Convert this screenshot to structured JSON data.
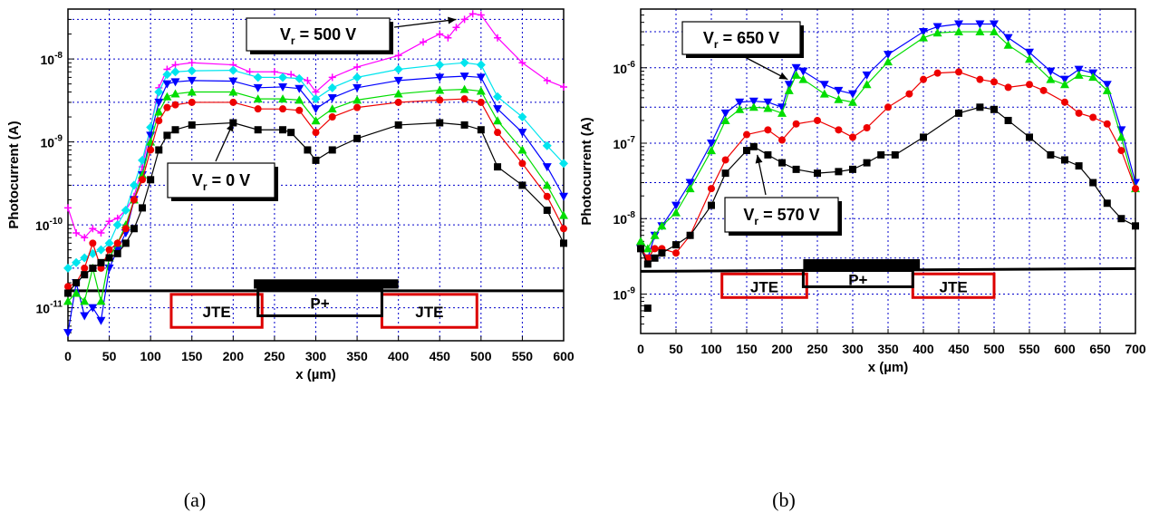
{
  "chart_data": [
    {
      "type": "line",
      "caption": "(a)",
      "xlabel": "x (µm)",
      "ylabel": "Photocurrent (A)",
      "x_scale": "linear",
      "y_scale": "log",
      "xlim": [
        0,
        600
      ],
      "ylim": [
        4e-12,
        4e-08
      ],
      "x_ticks": [
        0,
        50,
        100,
        150,
        200,
        250,
        300,
        350,
        400,
        450,
        500,
        550,
        600
      ],
      "x_tick_labels": [
        "0",
        "50",
        "100",
        "150",
        "200",
        "250",
        "300",
        "350",
        "400",
        "450",
        "500",
        "550",
        "600"
      ],
      "y_ticks": [
        1e-11,
        1e-10,
        1e-09,
        1e-08
      ],
      "y_tick_labels": [
        {
          "base": "10",
          "exp": "-11"
        },
        {
          "base": "10",
          "exp": "-10"
        },
        {
          "base": "10",
          "exp": "-9"
        },
        {
          "base": "10",
          "exp": "-8"
        }
      ],
      "grid": true,
      "annotations": [
        {
          "text_main": "V",
          "text_sub": "r",
          "text_rest": " = 500 V",
          "arrow_target": [
            470,
            3e-08
          ]
        },
        {
          "text_main": "V",
          "text_sub": "r",
          "text_rest": " = 0 V",
          "arrow_target": [
            200,
            1.7e-09
          ]
        }
      ],
      "regions": {
        "jte_left_label": "JTE",
        "p_plus_label": "P+",
        "jte_right_label": "JTE",
        "jte_left_range": [
          125,
          235
        ],
        "p_plus_range": [
          230,
          380
        ],
        "jte_right_range": [
          380,
          495
        ],
        "metal_range": [
          225,
          400
        ]
      },
      "series": [
        {
          "color": "#ff00ff",
          "marker": "plus",
          "x": [
            0,
            10,
            20,
            30,
            40,
            50,
            60,
            70,
            80,
            90,
            100,
            110,
            120,
            130,
            150,
            200,
            220,
            250,
            270,
            290,
            300,
            320,
            350,
            400,
            430,
            450,
            460,
            470,
            480,
            490,
            500,
            520,
            550,
            580,
            600
          ],
          "y": [
            1.6e-10,
            8e-11,
            7e-11,
            9e-11,
            8e-11,
            1.1e-10,
            1.2e-10,
            1.5e-10,
            2.2e-10,
            5e-10,
            1.5e-09,
            4.5e-09,
            7.5e-09,
            8.5e-09,
            9e-09,
            8.5e-09,
            7e-09,
            7e-09,
            6.5e-09,
            5.5e-09,
            4e-09,
            6e-09,
            8e-09,
            1.1e-08,
            1.6e-08,
            2e-08,
            1.8e-08,
            2.4e-08,
            3e-08,
            3.5e-08,
            3.4e-08,
            1.8e-08,
            9e-09,
            5.5e-09,
            4.6e-09
          ]
        },
        {
          "color": "#00e5ee",
          "marker": "diamond",
          "x": [
            0,
            10,
            20,
            30,
            40,
            50,
            60,
            70,
            80,
            90,
            100,
            110,
            120,
            130,
            150,
            200,
            230,
            260,
            280,
            300,
            320,
            350,
            400,
            450,
            480,
            500,
            520,
            550,
            580,
            600
          ],
          "y": [
            3e-11,
            3.5e-11,
            4e-11,
            4.5e-11,
            5e-11,
            6e-11,
            1e-10,
            1.5e-10,
            3e-10,
            6e-10,
            1.5e-09,
            4e-09,
            6.5e-09,
            7e-09,
            7.2e-09,
            7.3e-09,
            6e-09,
            6e-09,
            5.8e-09,
            3.3e-09,
            4.5e-09,
            6e-09,
            7.5e-09,
            8.5e-09,
            9e-09,
            8.5e-09,
            3.5e-09,
            2e-09,
            9e-10,
            5.5e-10
          ]
        },
        {
          "color": "#0000ff",
          "marker": "triangle-down",
          "x": [
            0,
            10,
            20,
            30,
            40,
            50,
            60,
            70,
            80,
            90,
            100,
            110,
            120,
            130,
            150,
            200,
            230,
            260,
            280,
            300,
            320,
            350,
            400,
            450,
            480,
            500,
            520,
            550,
            580,
            600
          ],
          "y": [
            5e-12,
            2e-11,
            8e-12,
            1e-11,
            7e-12,
            3e-11,
            5e-11,
            8e-11,
            2e-10,
            4e-10,
            1.2e-09,
            3e-09,
            5e-09,
            5.3e-09,
            5.5e-09,
            5.4e-09,
            4.5e-09,
            4.6e-09,
            4.4e-09,
            2.5e-09,
            3.4e-09,
            4.5e-09,
            5.5e-09,
            6e-09,
            6.2e-09,
            6e-09,
            2.5e-09,
            1.3e-09,
            5e-10,
            2.2e-10
          ]
        },
        {
          "color": "#00dd00",
          "marker": "triangle-up",
          "x": [
            0,
            10,
            20,
            30,
            40,
            50,
            60,
            70,
            80,
            90,
            100,
            110,
            120,
            130,
            150,
            200,
            230,
            260,
            280,
            300,
            320,
            350,
            400,
            450,
            480,
            500,
            520,
            550,
            580,
            600
          ],
          "y": [
            1.2e-11,
            1.5e-11,
            1.2e-11,
            3e-11,
            1.2e-11,
            4e-11,
            6e-11,
            1e-10,
            2e-10,
            4e-10,
            1e-09,
            2.3e-09,
            3.5e-09,
            3.8e-09,
            4e-09,
            4e-09,
            3.3e-09,
            3.3e-09,
            3.2e-09,
            1.8e-09,
            2.5e-09,
            3.2e-09,
            3.8e-09,
            4.2e-09,
            4.3e-09,
            4.1e-09,
            1.8e-09,
            8e-10,
            3e-10,
            1.3e-10
          ]
        },
        {
          "color": "#ee0000",
          "marker": "circle",
          "x": [
            0,
            10,
            20,
            30,
            40,
            50,
            60,
            70,
            80,
            90,
            100,
            110,
            120,
            130,
            150,
            200,
            230,
            260,
            280,
            300,
            320,
            350,
            400,
            450,
            480,
            500,
            520,
            550,
            580,
            600
          ],
          "y": [
            1.8e-11,
            2e-11,
            3e-11,
            6e-11,
            3e-11,
            5e-11,
            6e-11,
            9e-11,
            2e-10,
            3.5e-10,
            8e-10,
            1.8e-09,
            2.6e-09,
            2.8e-09,
            3e-09,
            3e-09,
            2.5e-09,
            2.5e-09,
            2.4e-09,
            1.3e-09,
            2e-09,
            2.6e-09,
            3e-09,
            3.2e-09,
            3.3e-09,
            3e-09,
            1.3e-09,
            5.5e-10,
            2.2e-10,
            9e-11
          ]
        },
        {
          "color": "#000000",
          "marker": "square",
          "x": [
            0,
            10,
            20,
            30,
            40,
            50,
            60,
            70,
            80,
            90,
            100,
            110,
            120,
            130,
            150,
            200,
            230,
            260,
            270,
            290,
            300,
            320,
            350,
            400,
            450,
            480,
            500,
            520,
            550,
            580,
            600
          ],
          "y": [
            1.5e-11,
            2e-11,
            2.5e-11,
            3e-11,
            3.5e-11,
            4e-11,
            4.5e-11,
            6e-11,
            9e-11,
            1.6e-10,
            3.5e-10,
            8e-10,
            1.2e-09,
            1.4e-09,
            1.6e-09,
            1.7e-09,
            1.4e-09,
            1.4e-09,
            1.3e-09,
            8e-10,
            6e-10,
            8e-10,
            1.1e-09,
            1.6e-09,
            1.7e-09,
            1.6e-09,
            1.4e-09,
            5e-10,
            3e-10,
            1.5e-10,
            6e-11
          ]
        }
      ]
    },
    {
      "type": "line",
      "caption": "(b)",
      "xlabel": "x (µm)",
      "ylabel": "Photocurrent (A)",
      "x_scale": "linear",
      "y_scale": "log",
      "xlim": [
        0,
        700
      ],
      "ylim": [
        3e-10,
        6e-06
      ],
      "x_ticks": [
        0,
        50,
        100,
        150,
        200,
        250,
        300,
        350,
        400,
        450,
        500,
        550,
        600,
        650,
        700
      ],
      "x_tick_labels": [
        "0",
        "50",
        "100",
        "150",
        "200",
        "250",
        "300",
        "350",
        "400",
        "450",
        "500",
        "550",
        "600",
        "650",
        "700"
      ],
      "y_ticks": [
        1e-09,
        1e-08,
        1e-07,
        1e-06
      ],
      "y_tick_labels": [
        {
          "base": "10",
          "exp": "-9"
        },
        {
          "base": "10",
          "exp": "-8"
        },
        {
          "base": "10",
          "exp": "-7"
        },
        {
          "base": "10",
          "exp": "-6"
        }
      ],
      "grid": true,
      "annotations": [
        {
          "text_main": "V",
          "text_sub": "r",
          "text_rest": " = 650 V",
          "arrow_target": [
            208,
            7e-07
          ]
        },
        {
          "text_main": "V",
          "text_sub": "r",
          "text_rest": " = 570 V",
          "arrow_target": [
            165,
            7e-08
          ]
        }
      ],
      "regions": {
        "jte_left_label": "JTE",
        "p_plus_label": "P+",
        "jte_right_label": "JTE",
        "jte_left_range": [
          115,
          235
        ],
        "p_plus_range": [
          230,
          385
        ],
        "jte_right_range": [
          385,
          500
        ],
        "metal_range": [
          230,
          395
        ]
      },
      "series": [
        {
          "color": "#0000ff",
          "marker": "triangle-down",
          "x": [
            0,
            10,
            20,
            30,
            50,
            70,
            100,
            120,
            140,
            160,
            180,
            200,
            210,
            220,
            230,
            260,
            280,
            300,
            320,
            350,
            400,
            420,
            450,
            480,
            500,
            520,
            550,
            580,
            600,
            620,
            640,
            660,
            680,
            700
          ],
          "y": [
            4e-09,
            3e-09,
            6e-09,
            8e-09,
            1.5e-08,
            3e-08,
            1e-07,
            2.5e-07,
            3.5e-07,
            3.6e-07,
            3.5e-07,
            3e-07,
            6e-07,
            1e-06,
            9e-07,
            6e-07,
            5e-07,
            4.5e-07,
            8e-07,
            1.5e-06,
            3e-06,
            3.5e-06,
            3.8e-06,
            3.8e-06,
            3.8e-06,
            2.5e-06,
            1.6e-06,
            9e-07,
            7e-07,
            9.5e-07,
            8.5e-07,
            6e-07,
            1.5e-07,
            3e-08
          ]
        },
        {
          "color": "#00dd00",
          "marker": "triangle-up",
          "x": [
            0,
            10,
            20,
            30,
            50,
            70,
            100,
            120,
            140,
            160,
            180,
            200,
            210,
            220,
            230,
            260,
            280,
            300,
            320,
            350,
            400,
            420,
            450,
            480,
            500,
            520,
            550,
            580,
            600,
            620,
            640,
            660,
            680,
            700
          ],
          "y": [
            5e-09,
            4e-09,
            6e-09,
            8e-09,
            1.2e-08,
            2.5e-08,
            8e-08,
            2e-07,
            2.8e-07,
            3e-07,
            2.9e-07,
            2.5e-07,
            5e-07,
            8e-07,
            7e-07,
            4.5e-07,
            3.8e-07,
            3.5e-07,
            6e-07,
            1.2e-06,
            2.5e-06,
            2.9e-06,
            3e-06,
            3e-06,
            3e-06,
            2e-06,
            1.3e-06,
            7e-07,
            6e-07,
            8e-07,
            7.5e-07,
            5e-07,
            1.2e-07,
            2.5e-08
          ]
        },
        {
          "color": "#ee0000",
          "marker": "circle",
          "x": [
            0,
            10,
            20,
            30,
            50,
            70,
            100,
            120,
            150,
            180,
            200,
            220,
            250,
            280,
            300,
            320,
            350,
            380,
            400,
            420,
            450,
            480,
            500,
            520,
            550,
            570,
            600,
            620,
            640,
            660,
            680,
            700
          ],
          "y": [
            4e-09,
            3e-09,
            4e-09,
            4e-09,
            3.5e-09,
            6e-09,
            2.5e-08,
            6e-08,
            1.3e-07,
            1.5e-07,
            1.1e-07,
            1.8e-07,
            2e-07,
            1.5e-07,
            1.2e-07,
            1.6e-07,
            3e-07,
            4.5e-07,
            7e-07,
            8.5e-07,
            8.8e-07,
            7e-07,
            6.5e-07,
            5.5e-07,
            6e-07,
            5e-07,
            3.5e-07,
            2.5e-07,
            2.2e-07,
            1.8e-07,
            8e-08,
            2.5e-08
          ]
        },
        {
          "color": "#000000",
          "marker": "square",
          "x": [
            0,
            10,
            20,
            30,
            50,
            70,
            100,
            120,
            150,
            160,
            180,
            200,
            220,
            250,
            280,
            300,
            320,
            340,
            360,
            400,
            450,
            480,
            500,
            520,
            550,
            580,
            600,
            620,
            640,
            660,
            680,
            700
          ],
          "y": [
            4e-09,
            2.5e-09,
            3e-09,
            3.5e-09,
            4.5e-09,
            6e-09,
            1.5e-08,
            4e-08,
            8e-08,
            9e-08,
            7e-08,
            5.5e-08,
            4.5e-08,
            4e-08,
            4.2e-08,
            4.5e-08,
            5.5e-08,
            7e-08,
            7e-08,
            1.2e-07,
            2.5e-07,
            3e-07,
            2.8e-07,
            2e-07,
            1.2e-07,
            7e-08,
            6e-08,
            5e-08,
            3e-08,
            1.6e-08,
            1e-08,
            8e-09
          ]
        }
      ],
      "outlier_point": {
        "x": 10,
        "y": 6.5e-10
      }
    }
  ]
}
